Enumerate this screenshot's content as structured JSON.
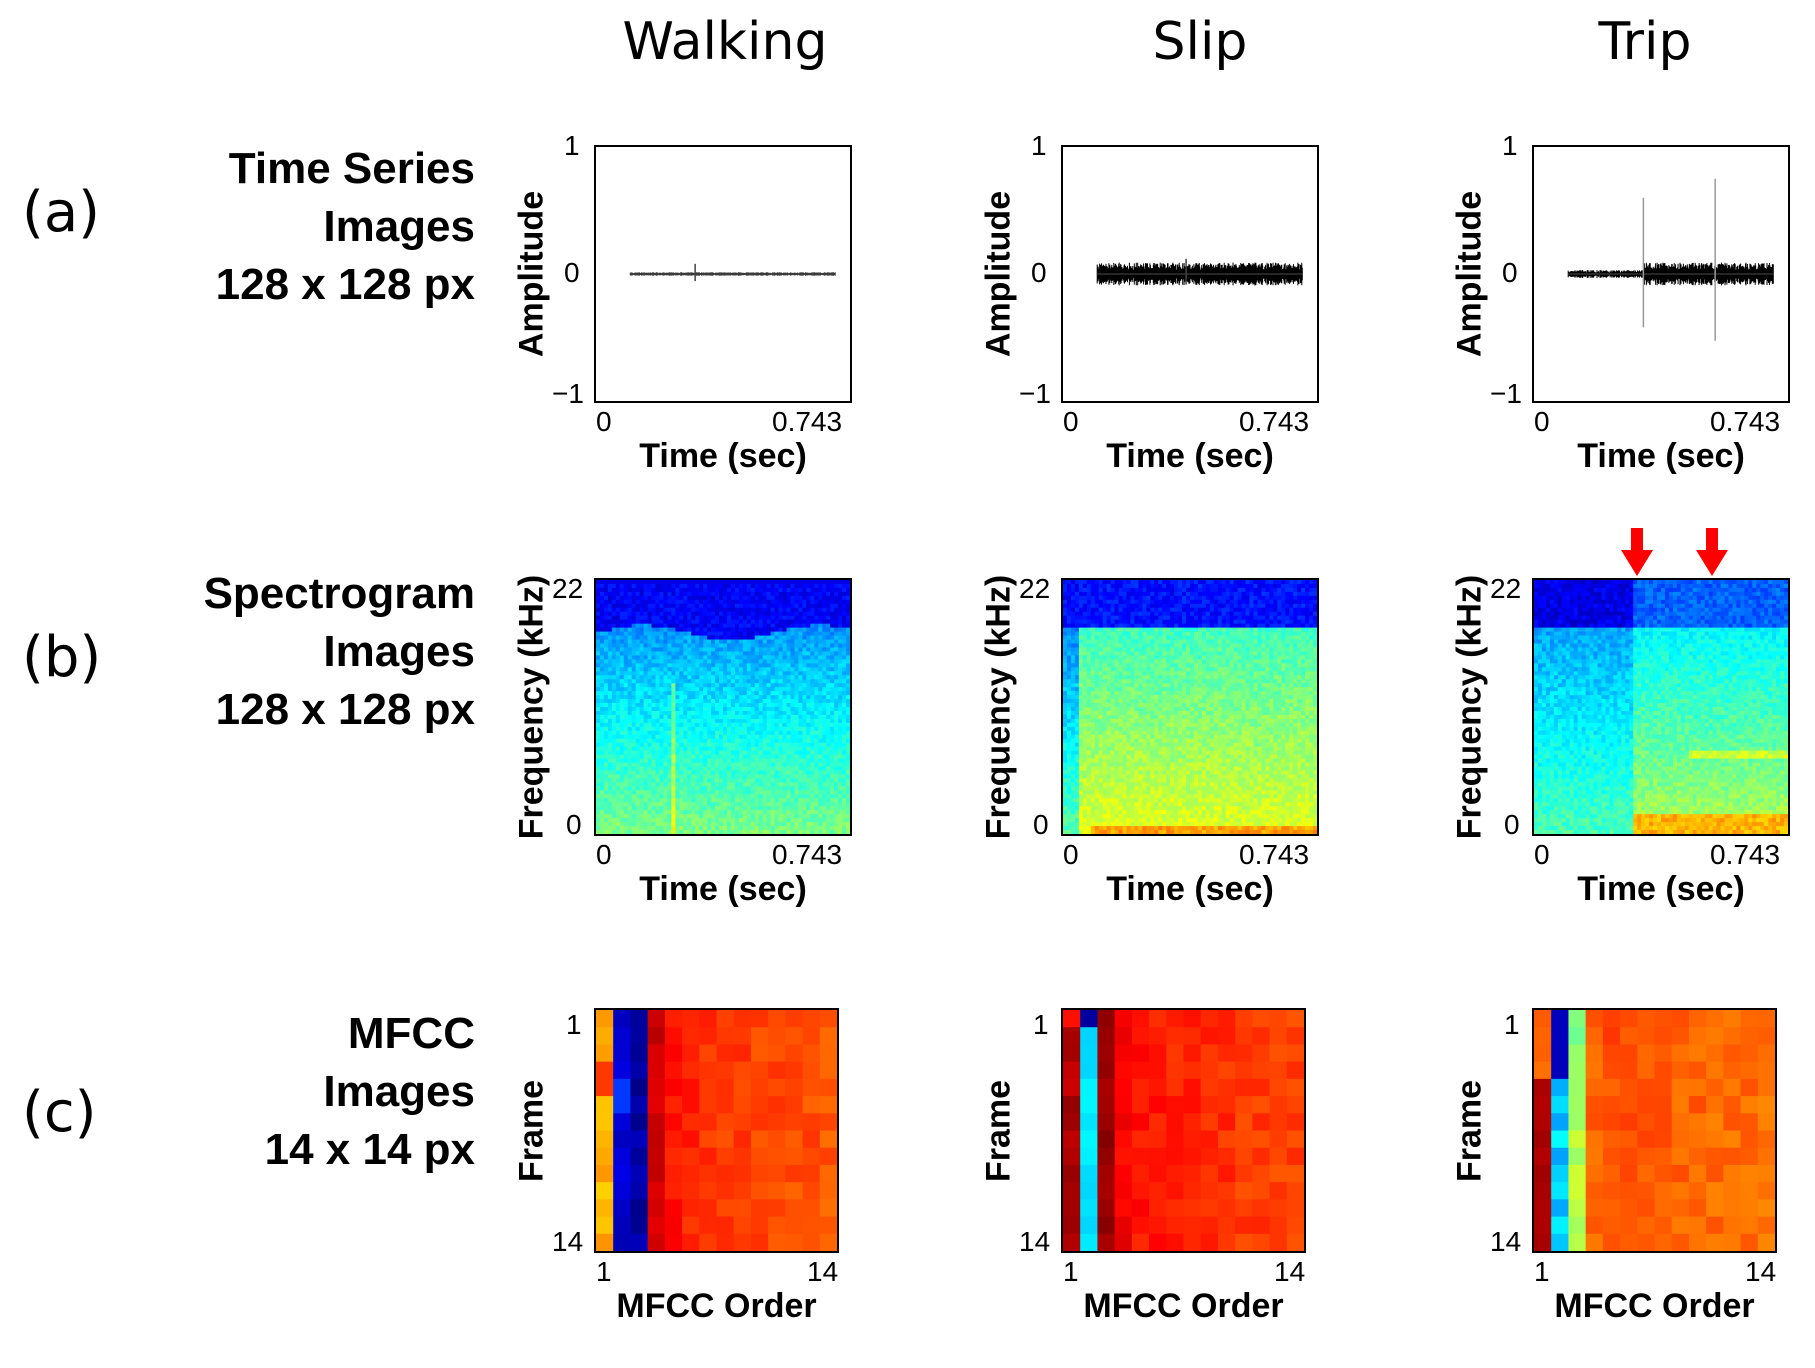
{
  "columns": [
    "Walking",
    "Slip",
    "Trip"
  ],
  "rows": [
    {
      "tag": "(a)",
      "label_lines": [
        "Time Series",
        "Images",
        "128 x 128 px"
      ]
    },
    {
      "tag": "(b)",
      "label_lines": [
        "Spectrogram",
        "Images",
        "128 x 128 px"
      ]
    },
    {
      "tag": "(c)",
      "label_lines": [
        "MFCC",
        "Images",
        "14 x 14 px"
      ]
    }
  ],
  "time_series": {
    "ylabel": "Amplitude",
    "xlabel": "Time (sec)",
    "yticks": [
      "1",
      "0",
      "−1"
    ],
    "xticks": [
      "0",
      "0.743"
    ]
  },
  "spectrogram": {
    "ylabel": "Frequency (kHz)",
    "xlabel": "Time (sec)",
    "yticks": [
      "22",
      "0"
    ],
    "xticks": [
      "0",
      "0.743"
    ]
  },
  "mfcc": {
    "ylabel": "Frame",
    "xlabel": "MFCC Order",
    "yticks": [
      "1",
      "14"
    ],
    "xticks": [
      "1",
      "14"
    ]
  },
  "annotations": {
    "trip_event_arrow_color": "#ff0000",
    "trip_event_arrows": 2
  },
  "chart_data": [
    {
      "type": "line",
      "title": "Walking",
      "panel": "time_series",
      "xlabel": "Time (sec)",
      "ylabel": "Amplitude",
      "xlim": [
        0,
        0.743
      ],
      "ylim": [
        -1,
        1
      ],
      "signal_start": 0.1,
      "signal_end": 0.7,
      "base_amplitude": 0.01,
      "spikes": [
        {
          "t": 0.29,
          "amp": 0.08
        }
      ]
    },
    {
      "type": "line",
      "title": "Slip",
      "panel": "time_series",
      "xlabel": "Time (sec)",
      "ylabel": "Amplitude",
      "xlim": [
        0,
        0.743
      ],
      "ylim": [
        -1,
        1
      ],
      "signal_start": 0.1,
      "signal_end": 0.7,
      "base_amplitude": 0.06,
      "spikes": [
        {
          "t": 0.36,
          "amp": 0.12
        }
      ]
    },
    {
      "type": "line",
      "title": "Trip",
      "panel": "time_series",
      "xlabel": "Time (sec)",
      "ylabel": "Amplitude",
      "xlim": [
        0,
        0.743
      ],
      "ylim": [
        -1,
        1
      ],
      "signal_start": 0.1,
      "signal_end": 0.7,
      "base_amplitude": 0.06,
      "spikes": [
        {
          "t": 0.32,
          "amp": 0.6
        },
        {
          "t": 0.53,
          "amp": 0.75
        }
      ]
    },
    {
      "type": "heatmap",
      "title": "Walking",
      "panel": "spectrogram",
      "xlabel": "Time (sec)",
      "ylabel": "Frequency (kHz)",
      "xlim": [
        0,
        0.743
      ],
      "ylim": [
        0,
        22
      ]
    },
    {
      "type": "heatmap",
      "title": "Slip",
      "panel": "spectrogram",
      "xlabel": "Time (sec)",
      "ylabel": "Frequency (kHz)",
      "xlim": [
        0,
        0.743
      ],
      "ylim": [
        0,
        22
      ]
    },
    {
      "type": "heatmap",
      "title": "Trip",
      "panel": "spectrogram",
      "xlabel": "Time (sec)",
      "ylabel": "Frequency (kHz)",
      "xlim": [
        0,
        0.743
      ],
      "ylim": [
        0,
        22
      ],
      "event_times": [
        0.3,
        0.52
      ]
    },
    {
      "type": "heatmap",
      "title": "Walking",
      "panel": "mfcc",
      "xlabel": "MFCC Order",
      "ylabel": "Frame",
      "xlim": [
        1,
        14
      ],
      "ylim": [
        1,
        14
      ],
      "column_values": [
        0.7,
        0.08,
        0.03,
        0.92,
        0.86,
        0.84,
        0.83,
        0.82,
        0.82,
        0.81,
        0.81,
        0.8,
        0.8,
        0.79
      ]
    },
    {
      "type": "heatmap",
      "title": "Slip",
      "panel": "mfcc",
      "xlabel": "MFCC Order",
      "ylabel": "Frame",
      "xlim": [
        1,
        14
      ],
      "ylim": [
        1,
        14
      ],
      "column_values": [
        0.95,
        0.35,
        0.97,
        0.88,
        0.86,
        0.85,
        0.84,
        0.84,
        0.83,
        0.83,
        0.82,
        0.82,
        0.81,
        0.81
      ]
    },
    {
      "type": "heatmap",
      "title": "Trip",
      "panel": "mfcc",
      "xlabel": "MFCC Order",
      "ylabel": "Frame",
      "xlim": [
        1,
        14
      ],
      "ylim": [
        1,
        14
      ],
      "column_values": [
        0.92,
        0.2,
        0.5,
        0.78,
        0.8,
        0.8,
        0.79,
        0.79,
        0.78,
        0.78,
        0.77,
        0.77,
        0.77,
        0.76
      ]
    }
  ]
}
